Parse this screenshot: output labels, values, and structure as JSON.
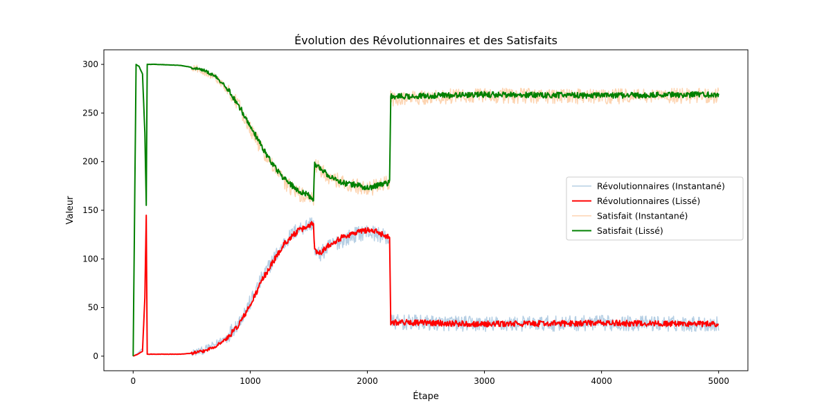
{
  "chart_data": {
    "type": "line",
    "title": "Évolution des Révolutionnaires et des Satisfaits",
    "xlabel": "Étape",
    "ylabel": "Valeur",
    "xlim": [
      -250,
      5250
    ],
    "ylim": [
      -15,
      315
    ],
    "xticks": [
      0,
      1000,
      2000,
      3000,
      4000,
      5000
    ],
    "yticks": [
      0,
      50,
      100,
      150,
      200,
      250,
      300
    ],
    "xtick_labels": [
      "0",
      "1000",
      "2000",
      "3000",
      "4000",
      "5000"
    ],
    "ytick_labels": [
      "0",
      "50",
      "100",
      "150",
      "200",
      "250",
      "300"
    ],
    "grid": false,
    "legend_position": "center-right",
    "series": [
      {
        "name": "Révolutionnaires (Instantané)",
        "color": "#b6cfe4",
        "style": "noisy",
        "noise": 8,
        "points": [
          [
            0,
            0
          ],
          [
            40,
            3
          ],
          [
            80,
            8
          ],
          [
            100,
            60
          ],
          [
            110,
            140
          ],
          [
            120,
            2
          ],
          [
            200,
            2
          ],
          [
            400,
            2
          ],
          [
            500,
            3
          ],
          [
            600,
            6
          ],
          [
            700,
            12
          ],
          [
            800,
            20
          ],
          [
            900,
            35
          ],
          [
            1000,
            55
          ],
          [
            1100,
            80
          ],
          [
            1200,
            100
          ],
          [
            1300,
            118
          ],
          [
            1400,
            130
          ],
          [
            1500,
            135
          ],
          [
            1540,
            138
          ],
          [
            1550,
            105
          ],
          [
            1600,
            105
          ],
          [
            1700,
            115
          ],
          [
            1800,
            120
          ],
          [
            1900,
            125
          ],
          [
            2000,
            128
          ],
          [
            2100,
            125
          ],
          [
            2190,
            120
          ],
          [
            2200,
            35
          ],
          [
            3000,
            33
          ],
          [
            4000,
            34
          ],
          [
            5000,
            33
          ]
        ]
      },
      {
        "name": "Révolutionnaires (Lissé)",
        "color": "#ff0000",
        "style": "smooth",
        "noise": 3,
        "points": [
          [
            0,
            0
          ],
          [
            40,
            2
          ],
          [
            80,
            5
          ],
          [
            100,
            60
          ],
          [
            112,
            145
          ],
          [
            120,
            2
          ],
          [
            200,
            2
          ],
          [
            400,
            2
          ],
          [
            500,
            3
          ],
          [
            600,
            5
          ],
          [
            700,
            10
          ],
          [
            800,
            18
          ],
          [
            900,
            32
          ],
          [
            1000,
            52
          ],
          [
            1100,
            78
          ],
          [
            1200,
            98
          ],
          [
            1300,
            117
          ],
          [
            1400,
            128
          ],
          [
            1500,
            134
          ],
          [
            1540,
            138
          ],
          [
            1550,
            108
          ],
          [
            1600,
            107
          ],
          [
            1700,
            117
          ],
          [
            1800,
            123
          ],
          [
            1900,
            127
          ],
          [
            2000,
            130
          ],
          [
            2100,
            127
          ],
          [
            2190,
            122
          ],
          [
            2200,
            35
          ],
          [
            3000,
            33
          ],
          [
            4000,
            34
          ],
          [
            5000,
            33
          ]
        ]
      },
      {
        "name": "Satisfait (Instantané)",
        "color": "#fdd4b1",
        "style": "noisy",
        "noise": 8,
        "points": [
          [
            0,
            0
          ],
          [
            25,
            300
          ],
          [
            50,
            298
          ],
          [
            80,
            290
          ],
          [
            100,
            230
          ],
          [
            110,
            160
          ],
          [
            120,
            300
          ],
          [
            200,
            300
          ],
          [
            400,
            299
          ],
          [
            500,
            297
          ],
          [
            600,
            293
          ],
          [
            700,
            287
          ],
          [
            800,
            275
          ],
          [
            900,
            257
          ],
          [
            1000,
            235
          ],
          [
            1100,
            212
          ],
          [
            1200,
            193
          ],
          [
            1300,
            178
          ],
          [
            1400,
            168
          ],
          [
            1500,
            162
          ],
          [
            1540,
            160
          ],
          [
            1550,
            195
          ],
          [
            1600,
            192
          ],
          [
            1700,
            182
          ],
          [
            1800,
            178
          ],
          [
            1900,
            175
          ],
          [
            2000,
            172
          ],
          [
            2100,
            175
          ],
          [
            2190,
            178
          ],
          [
            2200,
            265
          ],
          [
            3000,
            268
          ],
          [
            4000,
            267
          ],
          [
            5000,
            268
          ]
        ]
      },
      {
        "name": "Satisfait (Lissé)",
        "color": "#008000",
        "style": "smooth",
        "noise": 3,
        "points": [
          [
            0,
            0
          ],
          [
            25,
            300
          ],
          [
            50,
            298
          ],
          [
            80,
            290
          ],
          [
            100,
            230
          ],
          [
            112,
            155
          ],
          [
            120,
            300
          ],
          [
            200,
            300
          ],
          [
            400,
            299
          ],
          [
            500,
            297
          ],
          [
            600,
            294
          ],
          [
            700,
            288
          ],
          [
            800,
            276
          ],
          [
            900,
            258
          ],
          [
            1000,
            237
          ],
          [
            1100,
            215
          ],
          [
            1200,
            196
          ],
          [
            1300,
            181
          ],
          [
            1400,
            171
          ],
          [
            1500,
            165
          ],
          [
            1540,
            162
          ],
          [
            1550,
            198
          ],
          [
            1600,
            193
          ],
          [
            1700,
            183
          ],
          [
            1800,
            178
          ],
          [
            1900,
            176
          ],
          [
            2000,
            173
          ],
          [
            2100,
            176
          ],
          [
            2190,
            178
          ],
          [
            2200,
            267
          ],
          [
            3000,
            269
          ],
          [
            4000,
            268
          ],
          [
            5000,
            269
          ]
        ]
      }
    ]
  }
}
